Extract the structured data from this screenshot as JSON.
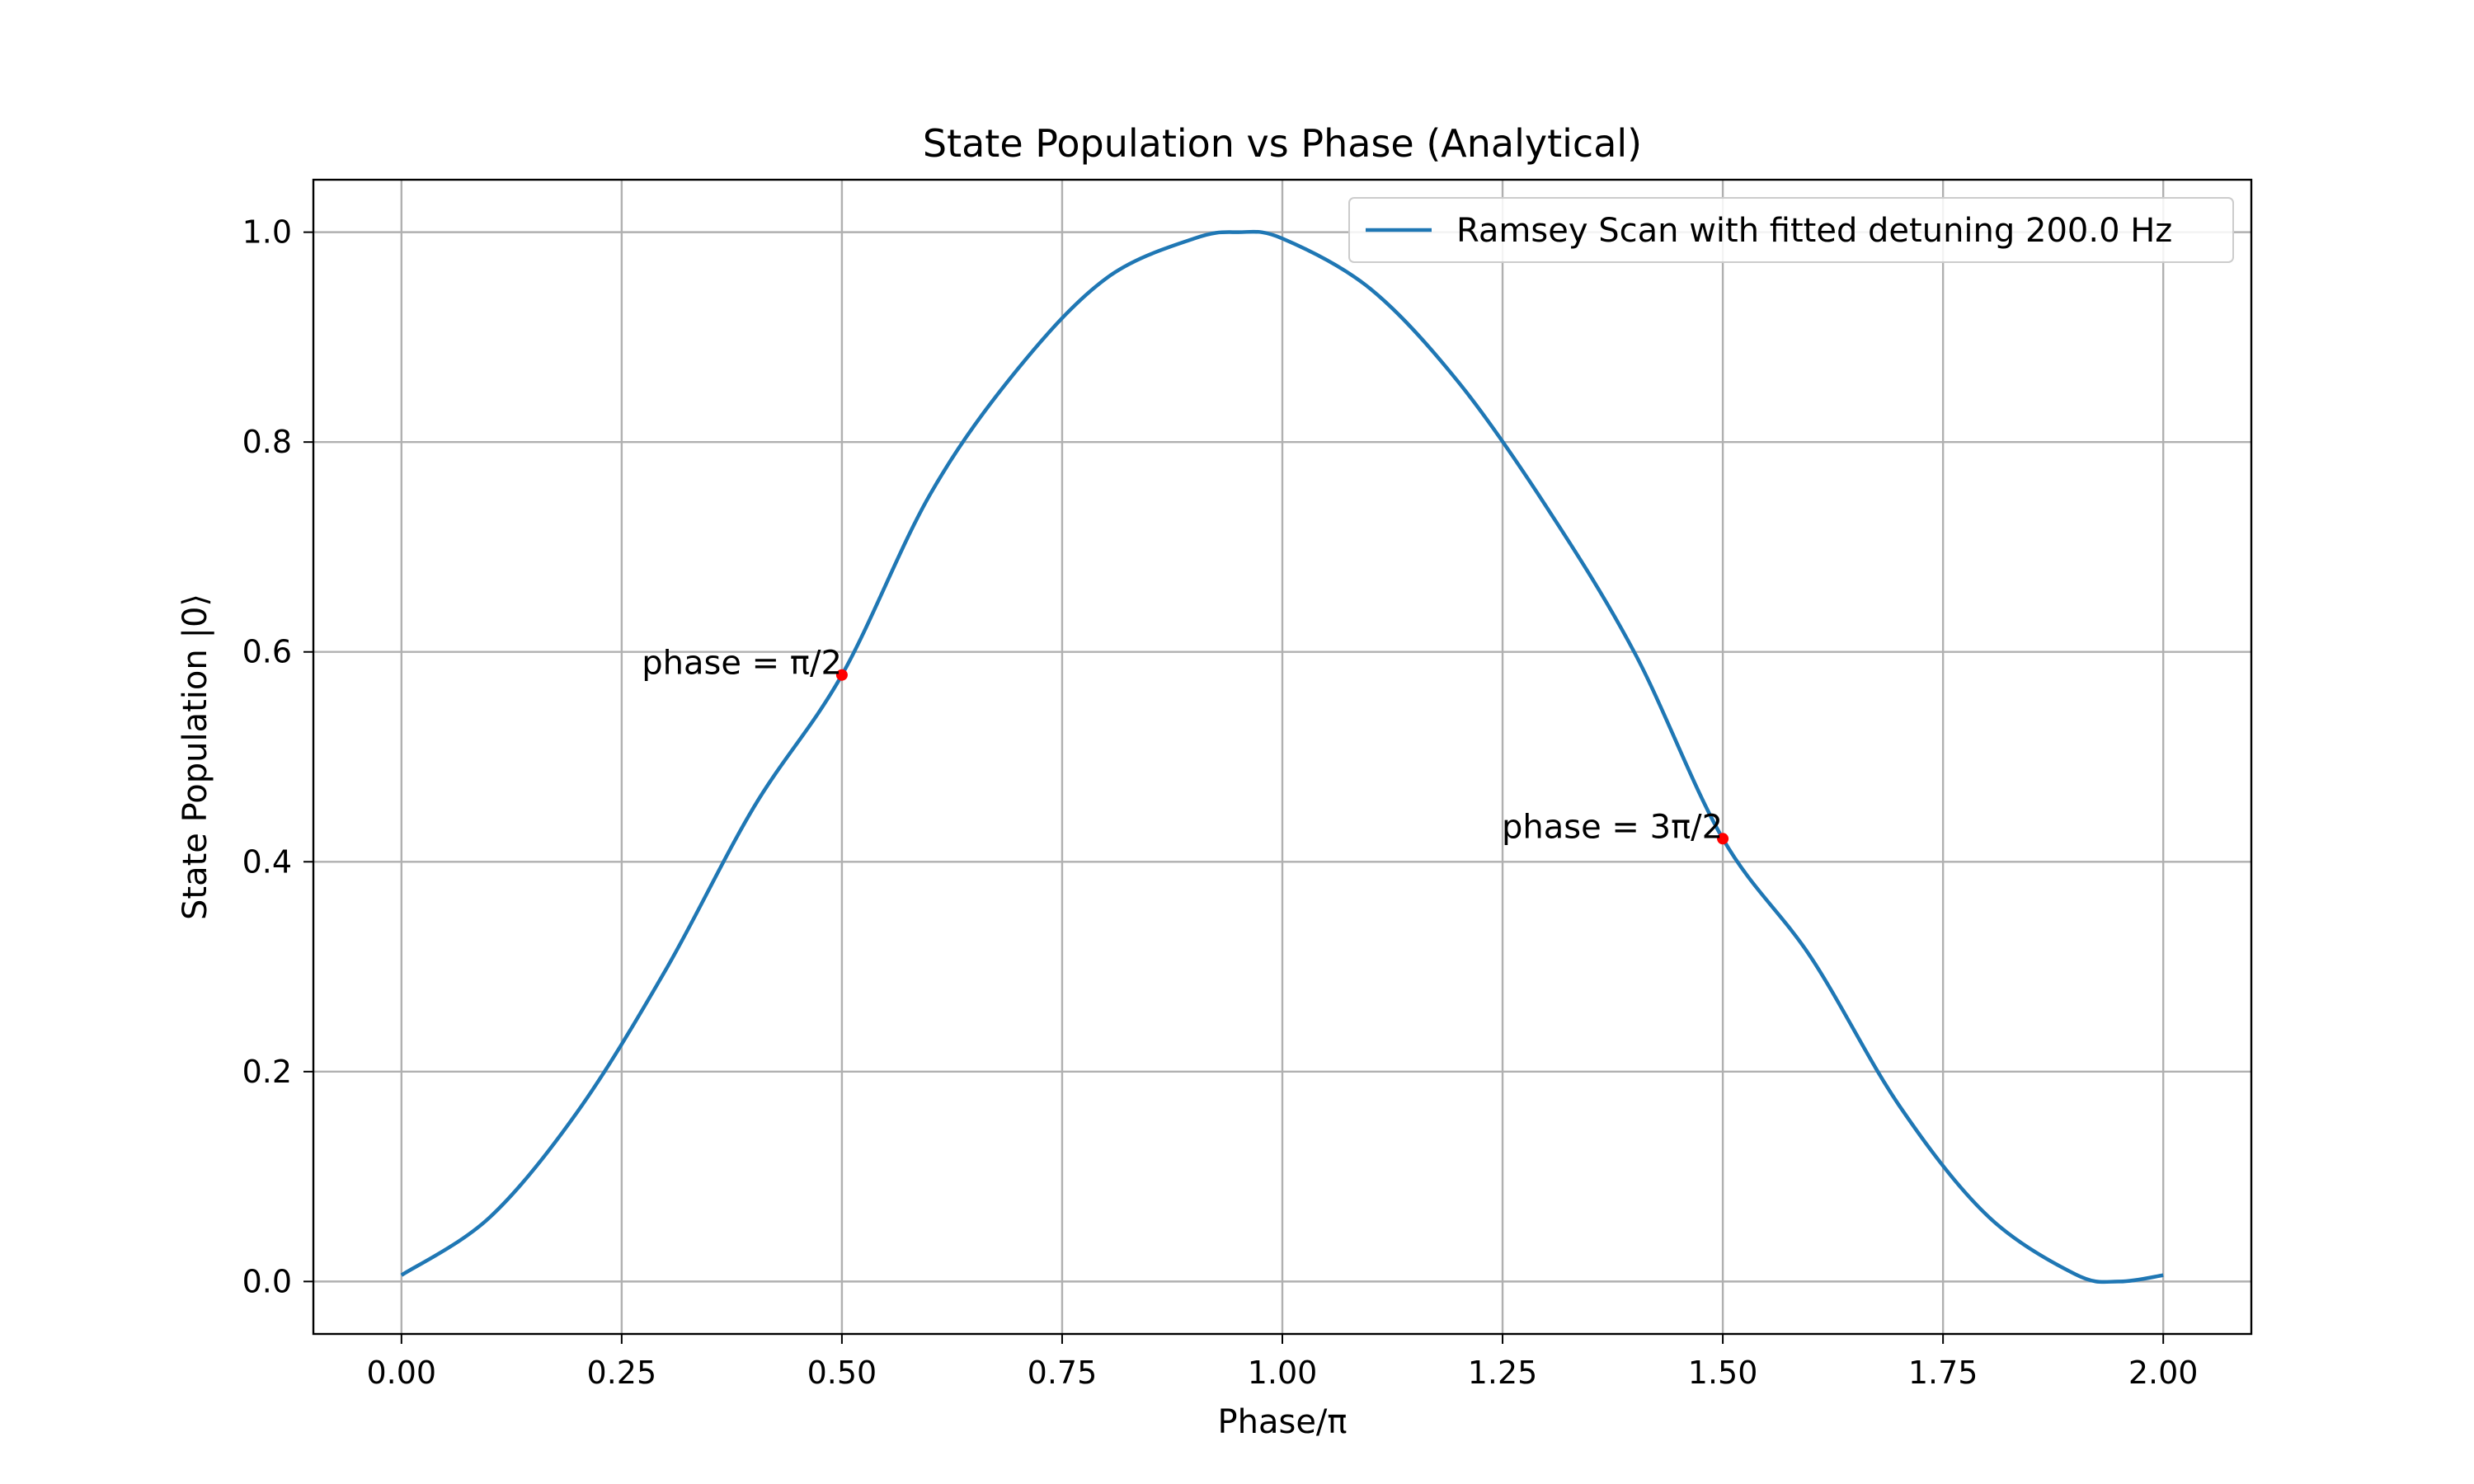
{
  "chart_data": {
    "type": "line",
    "title": "State Population vs Phase (Analytical)",
    "xlabel": "Phase/π",
    "ylabel": "State Population |0⟩",
    "xlim": [
      -0.1,
      2.1
    ],
    "ylim": [
      -0.05,
      1.05
    ],
    "xticks": [
      0.0,
      0.25,
      0.5,
      0.75,
      1.0,
      1.25,
      1.5,
      1.75,
      2.0
    ],
    "xtick_labels": [
      "0.00",
      "0.25",
      "0.50",
      "0.75",
      "1.00",
      "1.25",
      "1.50",
      "1.75",
      "2.00"
    ],
    "yticks": [
      0.0,
      0.2,
      0.4,
      0.6,
      0.8,
      1.0
    ],
    "ytick_labels": [
      "0.0",
      "0.2",
      "0.4",
      "0.6",
      "0.8",
      "1.0"
    ],
    "grid": true,
    "legend_position": "top-right",
    "series": [
      {
        "name": "Ramsey Scan with fitted detuning 200.0 Hz",
        "color": "#1f77b4",
        "x": [
          0.0,
          0.1,
          0.2,
          0.3,
          0.4,
          0.5,
          0.6,
          0.7,
          0.8,
          0.9,
          0.95,
          1.0,
          1.1,
          1.2,
          1.3,
          1.4,
          1.5,
          1.6,
          1.7,
          1.8,
          1.9,
          1.95,
          2.0
        ],
        "y": [
          0.006,
          0.061,
          0.162,
          0.297,
          0.452,
          0.578,
          0.75,
          0.87,
          0.956,
          0.994,
          1.0,
          0.994,
          0.946,
          0.857,
          0.738,
          0.599,
          0.422,
          0.309,
          0.168,
          0.063,
          0.007,
          0.0,
          0.006
        ]
      }
    ],
    "points": [
      {
        "x": 0.5,
        "y": 0.578,
        "label": "phase = π/2",
        "color": "#ff0000"
      },
      {
        "x": 1.5,
        "y": 0.422,
        "label": "phase = 3π/2",
        "color": "#ff0000"
      }
    ]
  }
}
